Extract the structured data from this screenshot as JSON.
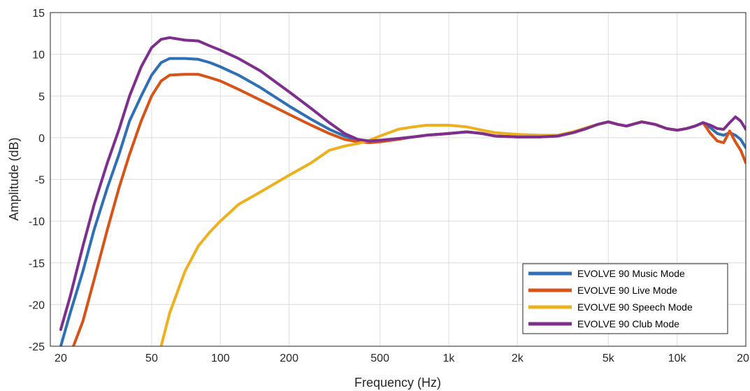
{
  "chart_data": {
    "type": "line",
    "xlabel": "Frequency (Hz)",
    "ylabel": "Amplitude (dB)",
    "x_scale": "log",
    "xlim": [
      18,
      20000
    ],
    "ylim": [
      -25,
      15
    ],
    "grid": true,
    "x_ticks": [
      {
        "value": 20,
        "label": "20"
      },
      {
        "value": 50,
        "label": "50"
      },
      {
        "value": 100,
        "label": "100"
      },
      {
        "value": 200,
        "label": "200"
      },
      {
        "value": 500,
        "label": "500"
      },
      {
        "value": 1000,
        "label": "1k"
      },
      {
        "value": 2000,
        "label": "2k"
      },
      {
        "value": 5000,
        "label": "5k"
      },
      {
        "value": 10000,
        "label": "10k"
      },
      {
        "value": 20000,
        "label": "20k"
      }
    ],
    "y_ticks": [
      15,
      10,
      5,
      0,
      -5,
      -10,
      -15,
      -20,
      -25
    ],
    "legend": {
      "placement": "bottom-right"
    },
    "series": [
      {
        "name": "EVOLVE 90 Music Mode",
        "color": "#2f6fb5",
        "points": [
          [
            20,
            -25
          ],
          [
            22,
            -21
          ],
          [
            25,
            -16
          ],
          [
            28,
            -11
          ],
          [
            32,
            -6
          ],
          [
            36,
            -2
          ],
          [
            40,
            2
          ],
          [
            45,
            5
          ],
          [
            50,
            7.5
          ],
          [
            55,
            9
          ],
          [
            60,
            9.5
          ],
          [
            70,
            9.5
          ],
          [
            80,
            9.4
          ],
          [
            90,
            9.0
          ],
          [
            100,
            8.5
          ],
          [
            120,
            7.5
          ],
          [
            150,
            6.0
          ],
          [
            200,
            3.8
          ],
          [
            250,
            2.2
          ],
          [
            300,
            1.0
          ],
          [
            350,
            0.2
          ],
          [
            400,
            -0.3
          ],
          [
            450,
            -0.5
          ],
          [
            500,
            -0.4
          ],
          [
            600,
            -0.1
          ],
          [
            700,
            0.1
          ],
          [
            800,
            0.3
          ],
          [
            1000,
            0.5
          ],
          [
            1200,
            0.7
          ],
          [
            1400,
            0.5
          ],
          [
            1600,
            0.2
          ],
          [
            2000,
            0.1
          ],
          [
            2500,
            0.1
          ],
          [
            3000,
            0.2
          ],
          [
            3500,
            0.6
          ],
          [
            4000,
            1.1
          ],
          [
            4500,
            1.6
          ],
          [
            5000,
            1.9
          ],
          [
            5500,
            1.6
          ],
          [
            6000,
            1.4
          ],
          [
            7000,
            1.9
          ],
          [
            8000,
            1.6
          ],
          [
            9000,
            1.1
          ],
          [
            10000,
            0.9
          ],
          [
            11000,
            1.1
          ],
          [
            12000,
            1.4
          ],
          [
            13000,
            1.8
          ],
          [
            14000,
            1.2
          ],
          [
            15000,
            0.5
          ],
          [
            16000,
            0.3
          ],
          [
            17000,
            0.6
          ],
          [
            18000,
            0.3
          ],
          [
            19000,
            -0.2
          ],
          [
            20000,
            -1.2
          ]
        ]
      },
      {
        "name": "EVOLVE 90 Live Mode",
        "color": "#d95319",
        "points": [
          [
            20,
            -28
          ],
          [
            22,
            -26
          ],
          [
            25,
            -22
          ],
          [
            28,
            -17
          ],
          [
            32,
            -11
          ],
          [
            36,
            -6
          ],
          [
            40,
            -2
          ],
          [
            45,
            2
          ],
          [
            50,
            5
          ],
          [
            55,
            6.8
          ],
          [
            60,
            7.5
          ],
          [
            70,
            7.6
          ],
          [
            80,
            7.6
          ],
          [
            90,
            7.2
          ],
          [
            100,
            6.8
          ],
          [
            120,
            5.8
          ],
          [
            150,
            4.5
          ],
          [
            200,
            2.8
          ],
          [
            250,
            1.5
          ],
          [
            300,
            0.5
          ],
          [
            350,
            -0.2
          ],
          [
            400,
            -0.5
          ],
          [
            450,
            -0.6
          ],
          [
            500,
            -0.5
          ],
          [
            600,
            -0.2
          ],
          [
            700,
            0.1
          ],
          [
            800,
            0.3
          ],
          [
            1000,
            0.5
          ],
          [
            1200,
            0.7
          ],
          [
            1400,
            0.5
          ],
          [
            1600,
            0.2
          ],
          [
            2000,
            0.1
          ],
          [
            2500,
            0.1
          ],
          [
            3000,
            0.2
          ],
          [
            3500,
            0.6
          ],
          [
            4000,
            1.1
          ],
          [
            4500,
            1.6
          ],
          [
            5000,
            1.9
          ],
          [
            5500,
            1.6
          ],
          [
            6000,
            1.4
          ],
          [
            7000,
            1.9
          ],
          [
            8000,
            1.6
          ],
          [
            9000,
            1.1
          ],
          [
            10000,
            0.9
          ],
          [
            11000,
            1.1
          ],
          [
            12000,
            1.4
          ],
          [
            13000,
            1.8
          ],
          [
            14000,
            0.5
          ],
          [
            15000,
            -0.4
          ],
          [
            16000,
            -0.6
          ],
          [
            17000,
            0.8
          ],
          [
            18000,
            -0.5
          ],
          [
            19000,
            -1.5
          ],
          [
            20000,
            -3.0
          ]
        ]
      },
      {
        "name": "EVOLVE 90 Speech Mode",
        "color": "#edb120",
        "points": [
          [
            55,
            -25
          ],
          [
            60,
            -21
          ],
          [
            70,
            -16
          ],
          [
            80,
            -13
          ],
          [
            90,
            -11.3
          ],
          [
            100,
            -10
          ],
          [
            120,
            -8
          ],
          [
            150,
            -6.5
          ],
          [
            200,
            -4.5
          ],
          [
            250,
            -3.0
          ],
          [
            300,
            -1.5
          ],
          [
            350,
            -1.0
          ],
          [
            400,
            -0.7
          ],
          [
            450,
            -0.3
          ],
          [
            500,
            0.2
          ],
          [
            600,
            1.0
          ],
          [
            700,
            1.3
          ],
          [
            800,
            1.5
          ],
          [
            1000,
            1.5
          ],
          [
            1200,
            1.3
          ],
          [
            1400,
            0.9
          ],
          [
            1600,
            0.6
          ],
          [
            2000,
            0.4
          ],
          [
            2500,
            0.3
          ],
          [
            3000,
            0.3
          ],
          [
            3500,
            0.7
          ],
          [
            4000,
            1.2
          ],
          [
            4500,
            1.6
          ],
          [
            5000,
            1.9
          ],
          [
            5500,
            1.6
          ],
          [
            6000,
            1.4
          ],
          [
            7000,
            1.9
          ],
          [
            8000,
            1.6
          ],
          [
            9000,
            1.1
          ],
          [
            10000,
            0.9
          ],
          [
            11000,
            1.1
          ],
          [
            12000,
            1.4
          ],
          [
            13000,
            1.8
          ]
        ]
      },
      {
        "name": "EVOLVE 90 Club Mode",
        "color": "#7e2f8e",
        "points": [
          [
            20,
            -23
          ],
          [
            22,
            -19
          ],
          [
            25,
            -13
          ],
          [
            28,
            -8
          ],
          [
            32,
            -3
          ],
          [
            36,
            1
          ],
          [
            40,
            5
          ],
          [
            45,
            8.5
          ],
          [
            50,
            10.8
          ],
          [
            55,
            11.8
          ],
          [
            60,
            12.0
          ],
          [
            70,
            11.7
          ],
          [
            80,
            11.6
          ],
          [
            90,
            11.0
          ],
          [
            100,
            10.5
          ],
          [
            120,
            9.5
          ],
          [
            150,
            8.0
          ],
          [
            200,
            5.5
          ],
          [
            250,
            3.5
          ],
          [
            300,
            1.8
          ],
          [
            350,
            0.5
          ],
          [
            400,
            -0.2
          ],
          [
            450,
            -0.4
          ],
          [
            500,
            -0.3
          ],
          [
            600,
            -0.1
          ],
          [
            700,
            0.1
          ],
          [
            800,
            0.3
          ],
          [
            1000,
            0.5
          ],
          [
            1200,
            0.7
          ],
          [
            1400,
            0.5
          ],
          [
            1600,
            0.2
          ],
          [
            2000,
            0.1
          ],
          [
            2500,
            0.1
          ],
          [
            3000,
            0.2
          ],
          [
            3500,
            0.6
          ],
          [
            4000,
            1.1
          ],
          [
            4500,
            1.6
          ],
          [
            5000,
            1.9
          ],
          [
            5500,
            1.6
          ],
          [
            6000,
            1.4
          ],
          [
            7000,
            1.9
          ],
          [
            8000,
            1.6
          ],
          [
            9000,
            1.1
          ],
          [
            10000,
            0.9
          ],
          [
            11000,
            1.1
          ],
          [
            12000,
            1.4
          ],
          [
            13000,
            1.8
          ],
          [
            14000,
            1.5
          ],
          [
            15000,
            1.1
          ],
          [
            16000,
            1.0
          ],
          [
            17000,
            1.8
          ],
          [
            18000,
            2.5
          ],
          [
            19000,
            2.0
          ],
          [
            20000,
            1.0
          ]
        ]
      }
    ]
  }
}
